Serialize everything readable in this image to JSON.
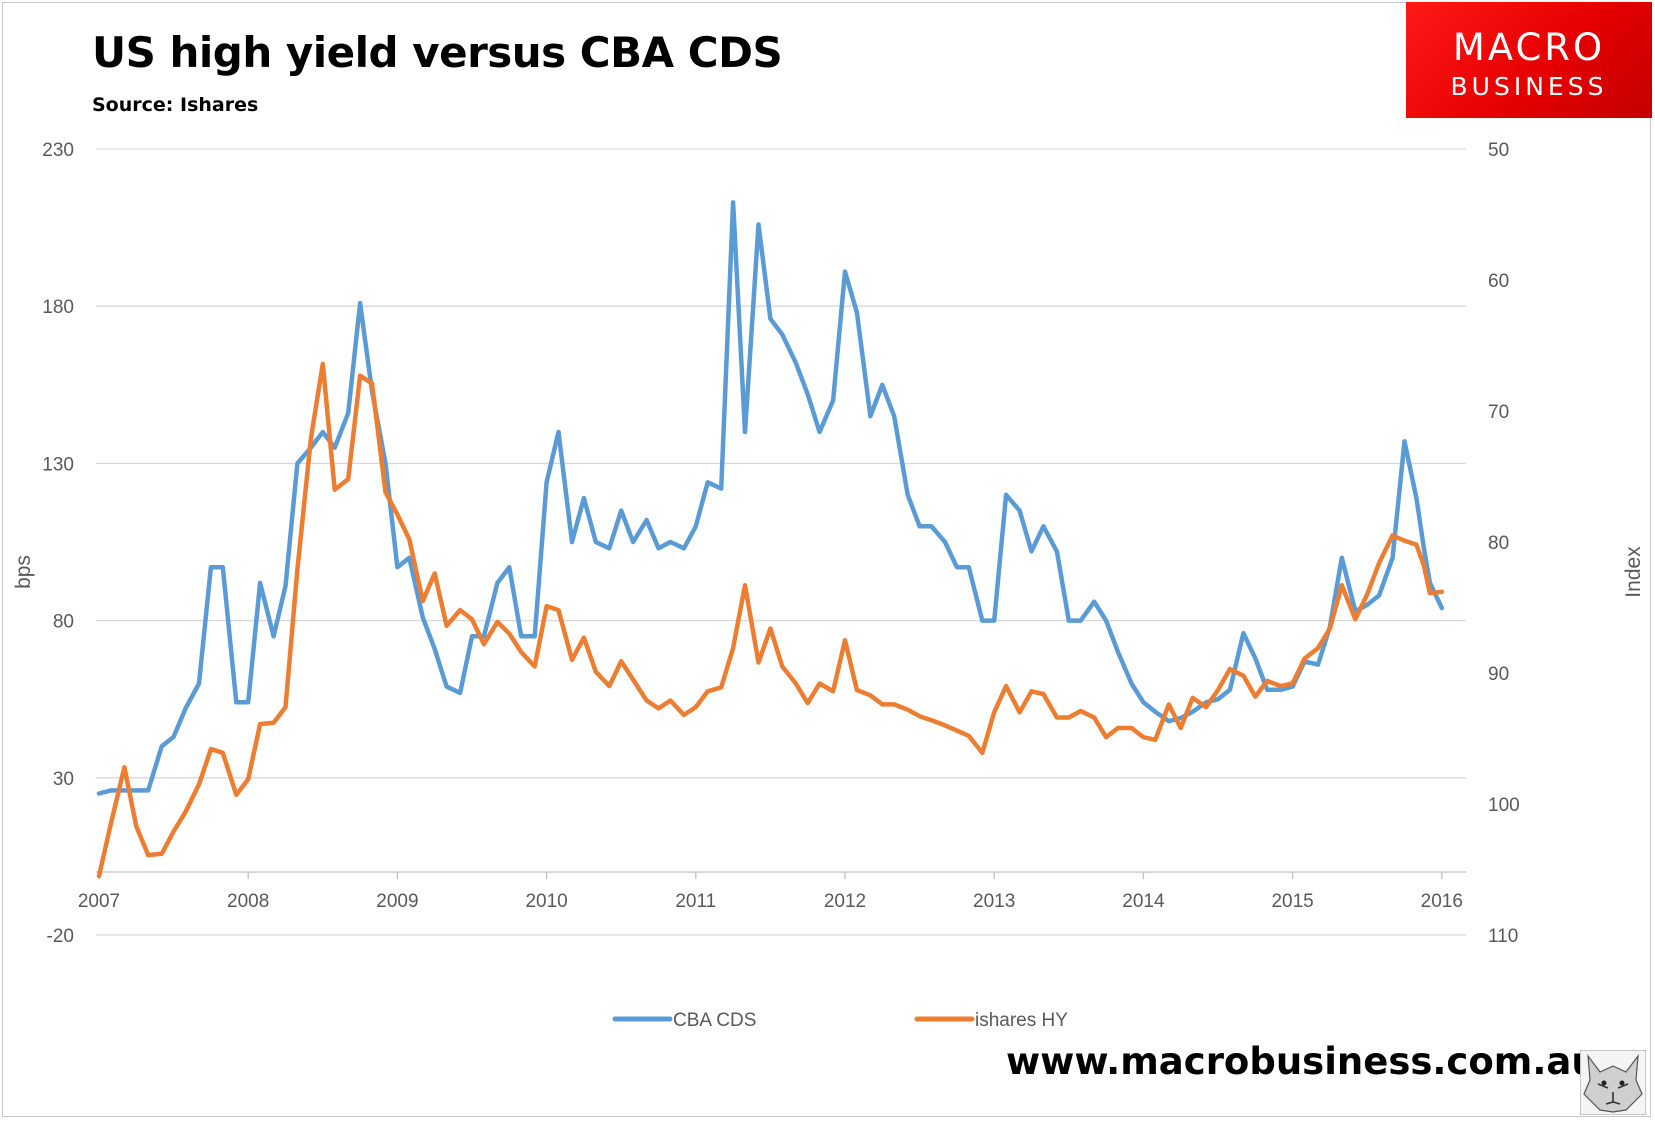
{
  "header": {
    "title": "US high yield versus CBA CDS",
    "subtitle": "Source: Ishares"
  },
  "logo": {
    "line1": "MACRO",
    "line2": "BUSINESS",
    "color": "#e60000"
  },
  "footer": {
    "website": "www.macrobusiness.com.au",
    "mascot_icon": "wolf-icon"
  },
  "chart_data": {
    "type": "line",
    "title": "US high yield versus CBA CDS",
    "subtitle": "Source: Ishares",
    "x_ticks": [
      "2007",
      "2008",
      "2009",
      "2010",
      "2011",
      "2012",
      "2013",
      "2014",
      "2015",
      "2016"
    ],
    "xlim": [
      2007.0,
      2016.17
    ],
    "left_axis": {
      "label": "bps",
      "ticks": [
        "230",
        "180",
        "130",
        "80",
        "30",
        "-20"
      ],
      "ylim": [
        -20,
        230
      ]
    },
    "right_axis": {
      "label": "Index",
      "ticks": [
        "50",
        "60",
        "70",
        "80",
        "90",
        "100",
        "110"
      ],
      "ylim": [
        50,
        110
      ],
      "inverted": true
    },
    "grid": "horizontal",
    "legend_position": "bottom",
    "series": [
      {
        "name": "CBA CDS",
        "axis": "left",
        "color": "#5b9bd5",
        "x": [
          2007.0,
          2007.08,
          2007.17,
          2007.25,
          2007.33,
          2007.42,
          2007.5,
          2007.58,
          2007.67,
          2007.75,
          2007.83,
          2007.92,
          2008.0,
          2008.08,
          2008.17,
          2008.25,
          2008.33,
          2008.42,
          2008.5,
          2008.58,
          2008.67,
          2008.75,
          2008.83,
          2008.92,
          2009.0,
          2009.08,
          2009.17,
          2009.25,
          2009.33,
          2009.42,
          2009.5,
          2009.58,
          2009.67,
          2009.75,
          2009.83,
          2009.92,
          2010.0,
          2010.08,
          2010.17,
          2010.25,
          2010.33,
          2010.42,
          2010.5,
          2010.58,
          2010.67,
          2010.75,
          2010.83,
          2010.92,
          2011.0,
          2011.08,
          2011.17,
          2011.25,
          2011.33,
          2011.42,
          2011.5,
          2011.58,
          2011.67,
          2011.75,
          2011.83,
          2011.92,
          2012.0,
          2012.08,
          2012.17,
          2012.25,
          2012.33,
          2012.42,
          2012.5,
          2012.58,
          2012.67,
          2012.75,
          2012.83,
          2012.92,
          2013.0,
          2013.08,
          2013.17,
          2013.25,
          2013.33,
          2013.42,
          2013.5,
          2013.58,
          2013.67,
          2013.75,
          2013.83,
          2013.92,
          2014.0,
          2014.08,
          2014.17,
          2014.25,
          2014.33,
          2014.42,
          2014.5,
          2014.58,
          2014.67,
          2014.75,
          2014.83,
          2014.92,
          2015.0,
          2015.08,
          2015.17,
          2015.25,
          2015.33,
          2015.42,
          2015.5,
          2015.58,
          2015.67,
          2015.75,
          2015.83,
          2015.88,
          2015.92,
          2016.0
        ],
        "values": [
          25,
          26,
          26,
          26,
          26,
          40,
          43,
          52,
          60,
          97,
          97,
          54,
          54,
          92,
          75,
          91,
          130,
          135,
          140,
          135,
          146,
          181,
          153,
          130,
          97,
          100,
          81,
          71,
          59,
          57,
          75,
          75,
          92,
          97,
          75,
          75,
          124,
          140,
          105,
          119,
          105,
          103,
          115,
          105,
          112,
          103,
          105,
          103,
          110,
          124,
          122,
          213,
          140,
          206,
          176,
          171,
          162,
          152,
          140,
          150,
          191,
          178,
          145,
          155,
          145,
          120,
          110,
          110,
          105,
          97,
          97,
          80,
          80,
          120,
          115,
          102,
          110,
          102,
          80,
          80,
          86,
          80,
          70,
          60,
          54,
          51,
          48,
          49,
          51,
          54,
          55,
          58,
          76,
          68,
          58,
          58,
          59,
          67,
          66,
          78,
          100,
          83,
          85,
          88,
          100,
          137,
          119,
          103,
          92,
          84
        ]
      },
      {
        "name": "ishares HY",
        "axis": "right",
        "color": "#ed7d31",
        "x": [
          2007.0,
          2007.08,
          2007.17,
          2007.25,
          2007.33,
          2007.42,
          2007.5,
          2007.58,
          2007.67,
          2007.75,
          2007.83,
          2007.92,
          2008.0,
          2008.08,
          2008.17,
          2008.25,
          2008.33,
          2008.42,
          2008.5,
          2008.58,
          2008.67,
          2008.75,
          2008.83,
          2008.92,
          2009.0,
          2009.08,
          2009.17,
          2009.25,
          2009.33,
          2009.42,
          2009.5,
          2009.58,
          2009.67,
          2009.75,
          2009.83,
          2009.92,
          2010.0,
          2010.08,
          2010.17,
          2010.25,
          2010.33,
          2010.42,
          2010.5,
          2010.58,
          2010.67,
          2010.75,
          2010.83,
          2010.92,
          2011.0,
          2011.08,
          2011.17,
          2011.25,
          2011.33,
          2011.42,
          2011.5,
          2011.58,
          2011.67,
          2011.75,
          2011.83,
          2011.92,
          2012.0,
          2012.08,
          2012.17,
          2012.25,
          2012.33,
          2012.42,
          2012.5,
          2012.58,
          2012.67,
          2012.75,
          2012.83,
          2012.92,
          2013.0,
          2013.08,
          2013.17,
          2013.25,
          2013.33,
          2013.42,
          2013.5,
          2013.58,
          2013.67,
          2013.75,
          2013.83,
          2013.92,
          2014.0,
          2014.08,
          2014.17,
          2014.25,
          2014.33,
          2014.42,
          2014.5,
          2014.58,
          2014.67,
          2014.75,
          2014.83,
          2014.92,
          2015.0,
          2015.08,
          2015.17,
          2015.25,
          2015.33,
          2015.42,
          2015.5,
          2015.58,
          2015.67,
          2015.75,
          2015.83,
          2015.88,
          2015.92,
          2016.0
        ],
        "values": [
          105.5,
          101.5,
          97.2,
          101.7,
          103.9,
          103.8,
          102.1,
          100.6,
          98.5,
          95.8,
          96.1,
          99.3,
          98.1,
          93.9,
          93.8,
          92.6,
          82.1,
          72.1,
          66.4,
          76.0,
          75.2,
          67.3,
          67.9,
          76.2,
          77.9,
          79.8,
          84.5,
          82.4,
          86.4,
          85.2,
          85.9,
          87.8,
          86.1,
          87.0,
          88.4,
          89.5,
          84.9,
          85.2,
          89.0,
          87.3,
          89.9,
          91.0,
          89.1,
          90.5,
          92.1,
          92.7,
          92.1,
          93.2,
          92.6,
          91.4,
          91.1,
          88.1,
          83.3,
          89.2,
          86.6,
          89.5,
          90.8,
          92.3,
          90.8,
          91.4,
          87.5,
          91.3,
          91.7,
          92.4,
          92.4,
          92.8,
          93.3,
          93.6,
          94.0,
          94.4,
          94.8,
          96.1,
          93.0,
          91.0,
          93.0,
          91.4,
          91.6,
          93.4,
          93.4,
          92.9,
          93.4,
          94.9,
          94.2,
          94.2,
          94.9,
          95.1,
          92.4,
          94.2,
          91.9,
          92.6,
          91.3,
          89.7,
          90.2,
          91.8,
          90.6,
          91.0,
          90.8,
          88.9,
          88.1,
          86.6,
          83.3,
          85.9,
          84.0,
          81.6,
          79.5,
          79.9,
          80.2,
          81.8,
          83.9,
          83.8
        ]
      }
    ]
  }
}
